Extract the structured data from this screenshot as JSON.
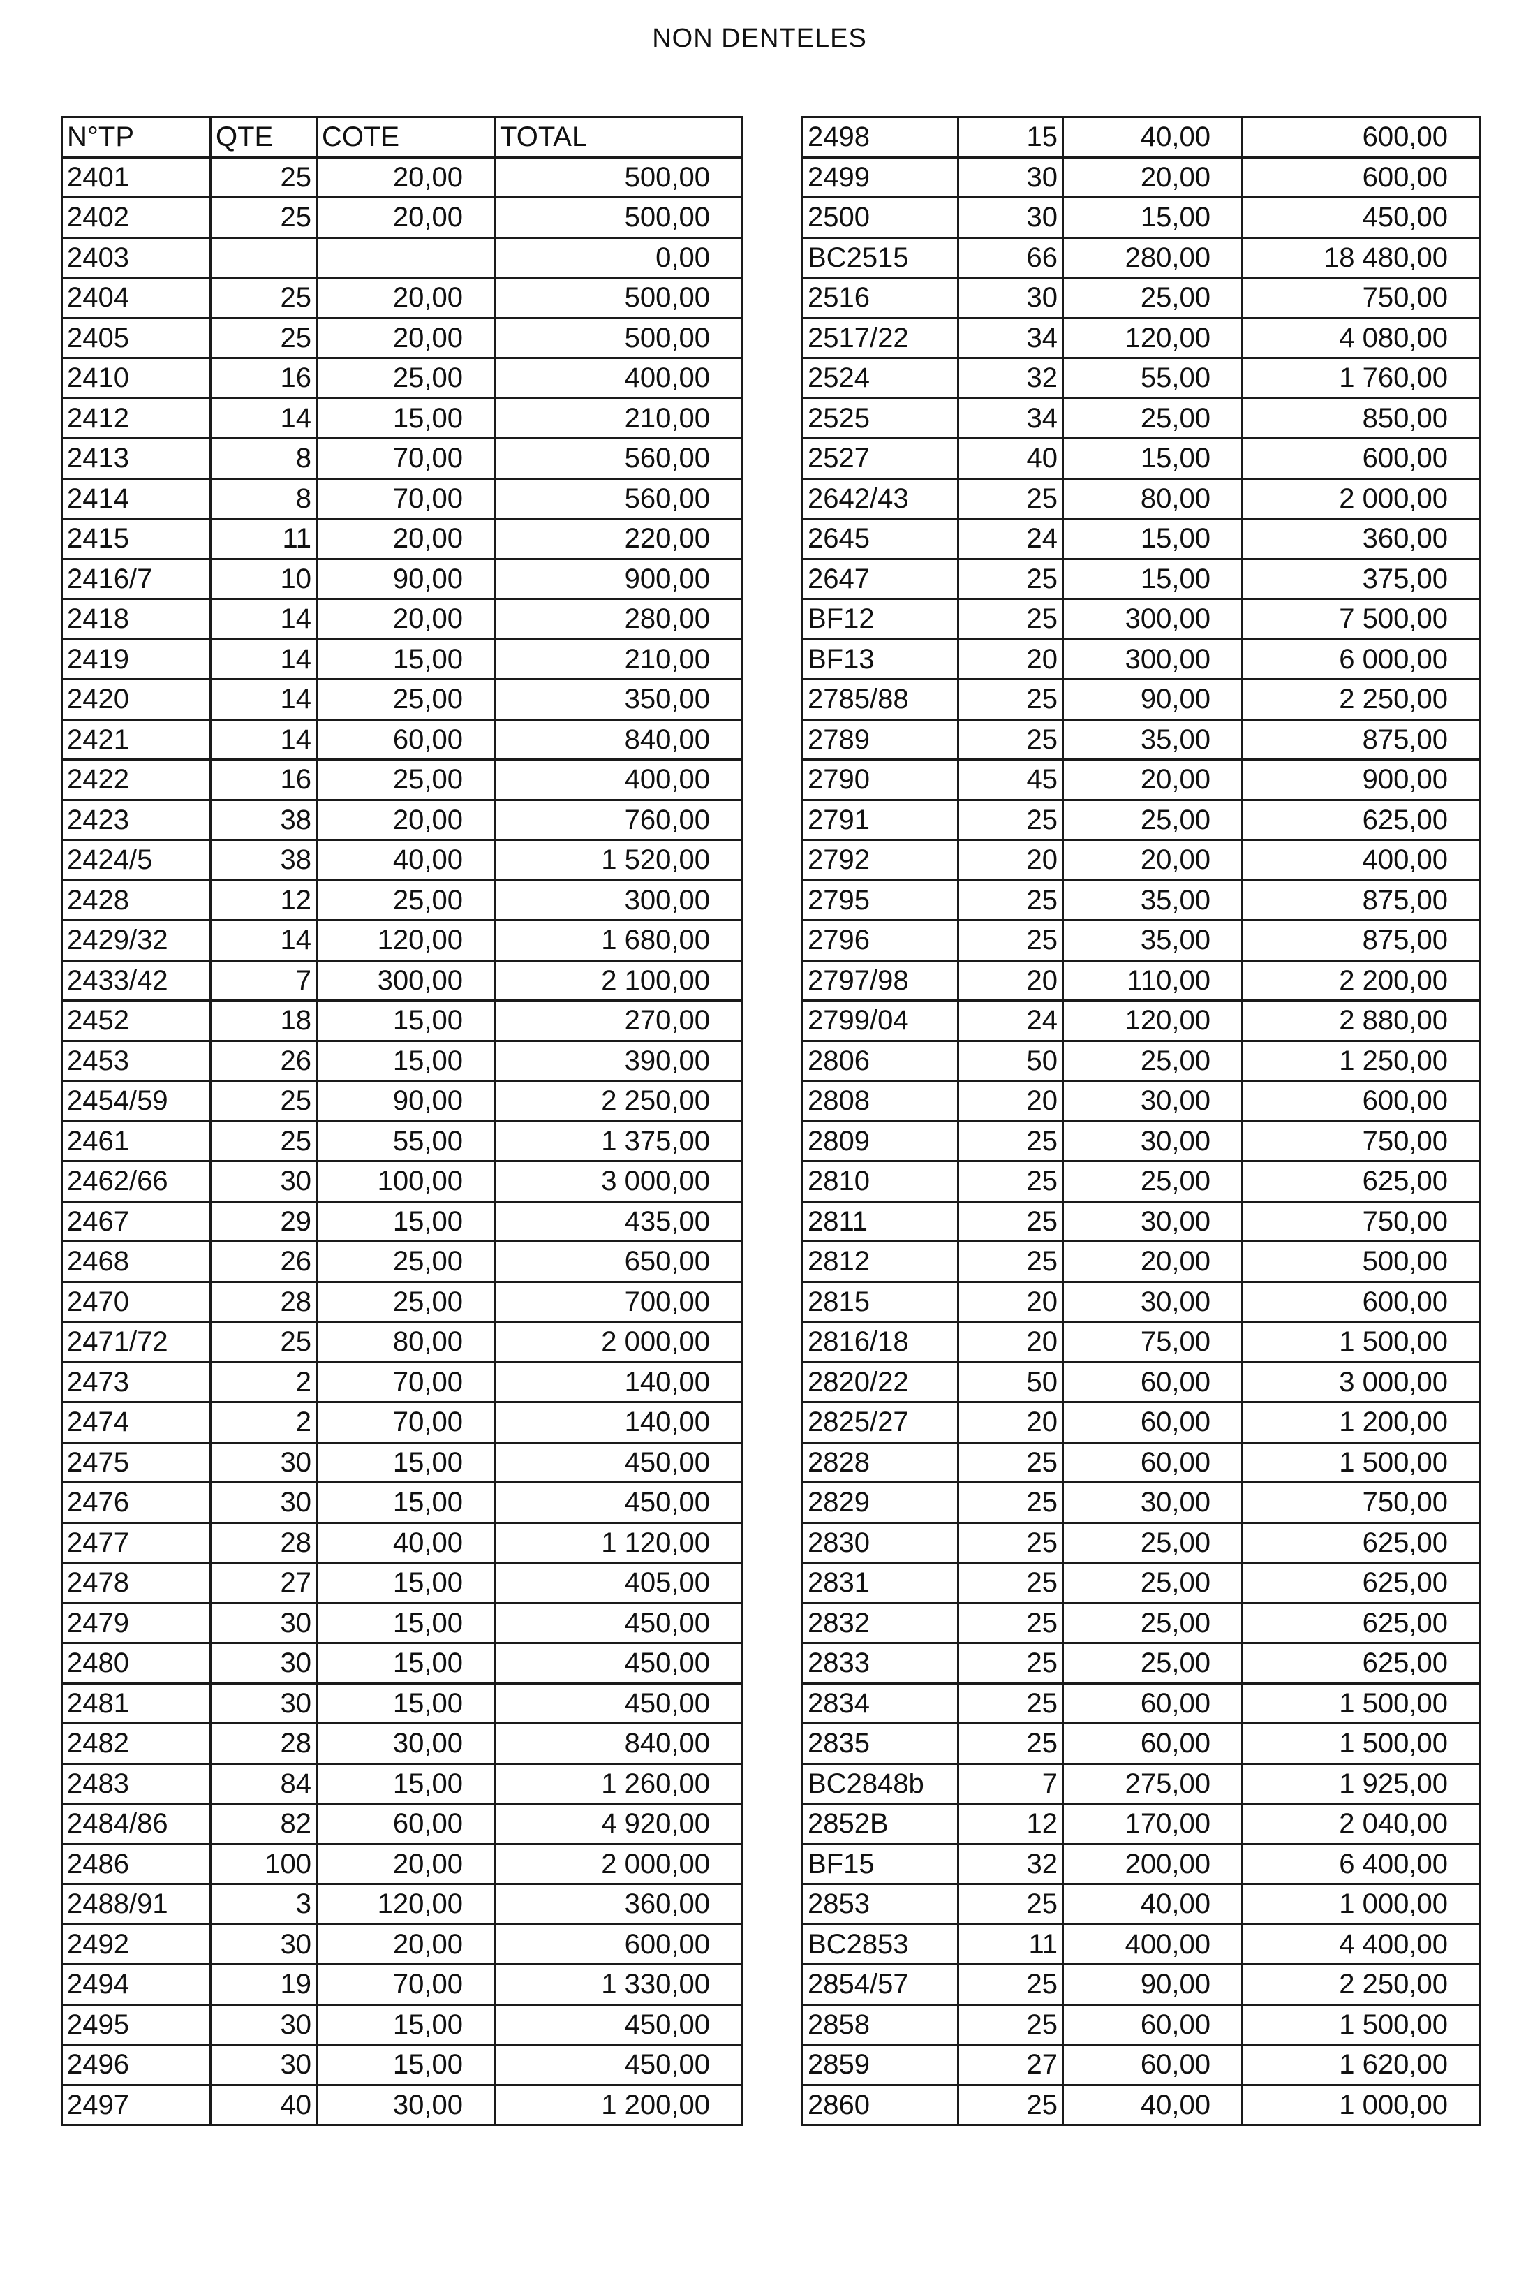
{
  "title": "NON DENTELES",
  "left_table": {
    "headers": [
      "N°TP",
      "QTE",
      "COTE",
      "TOTAL"
    ],
    "rows": [
      [
        "2401",
        "25",
        "20,00",
        "500,00"
      ],
      [
        "2402",
        "25",
        "20,00",
        "500,00"
      ],
      [
        "2403",
        "",
        "",
        "0,00"
      ],
      [
        "2404",
        "25",
        "20,00",
        "500,00"
      ],
      [
        "2405",
        "25",
        "20,00",
        "500,00"
      ],
      [
        "2410",
        "16",
        "25,00",
        "400,00"
      ],
      [
        "2412",
        "14",
        "15,00",
        "210,00"
      ],
      [
        "2413",
        "8",
        "70,00",
        "560,00"
      ],
      [
        "2414",
        "8",
        "70,00",
        "560,00"
      ],
      [
        "2415",
        "11",
        "20,00",
        "220,00"
      ],
      [
        "2416/7",
        "10",
        "90,00",
        "900,00"
      ],
      [
        "2418",
        "14",
        "20,00",
        "280,00"
      ],
      [
        "2419",
        "14",
        "15,00",
        "210,00"
      ],
      [
        "2420",
        "14",
        "25,00",
        "350,00"
      ],
      [
        "2421",
        "14",
        "60,00",
        "840,00"
      ],
      [
        "2422",
        "16",
        "25,00",
        "400,00"
      ],
      [
        "2423",
        "38",
        "20,00",
        "760,00"
      ],
      [
        "2424/5",
        "38",
        "40,00",
        "1 520,00"
      ],
      [
        "2428",
        "12",
        "25,00",
        "300,00"
      ],
      [
        "2429/32",
        "14",
        "120,00",
        "1 680,00"
      ],
      [
        "2433/42",
        "7",
        "300,00",
        "2 100,00"
      ],
      [
        "2452",
        "18",
        "15,00",
        "270,00"
      ],
      [
        "2453",
        "26",
        "15,00",
        "390,00"
      ],
      [
        "2454/59",
        "25",
        "90,00",
        "2 250,00"
      ],
      [
        "2461",
        "25",
        "55,00",
        "1 375,00"
      ],
      [
        "2462/66",
        "30",
        "100,00",
        "3 000,00"
      ],
      [
        "2467",
        "29",
        "15,00",
        "435,00"
      ],
      [
        "2468",
        "26",
        "25,00",
        "650,00"
      ],
      [
        "2470",
        "28",
        "25,00",
        "700,00"
      ],
      [
        "2471/72",
        "25",
        "80,00",
        "2 000,00"
      ],
      [
        "2473",
        "2",
        "70,00",
        "140,00"
      ],
      [
        "2474",
        "2",
        "70,00",
        "140,00"
      ],
      [
        "2475",
        "30",
        "15,00",
        "450,00"
      ],
      [
        "2476",
        "30",
        "15,00",
        "450,00"
      ],
      [
        "2477",
        "28",
        "40,00",
        "1 120,00"
      ],
      [
        "2478",
        "27",
        "15,00",
        "405,00"
      ],
      [
        "2479",
        "30",
        "15,00",
        "450,00"
      ],
      [
        "2480",
        "30",
        "15,00",
        "450,00"
      ],
      [
        "2481",
        "30",
        "15,00",
        "450,00"
      ],
      [
        "2482",
        "28",
        "30,00",
        "840,00"
      ],
      [
        "2483",
        "84",
        "15,00",
        "1 260,00"
      ],
      [
        "2484/86",
        "82",
        "60,00",
        "4 920,00"
      ],
      [
        "2486",
        "100",
        "20,00",
        "2 000,00"
      ],
      [
        "2488/91",
        "3",
        "120,00",
        "360,00"
      ],
      [
        "2492",
        "30",
        "20,00",
        "600,00"
      ],
      [
        "2494",
        "19",
        "70,00",
        "1 330,00"
      ],
      [
        "2495",
        "30",
        "15,00",
        "450,00"
      ],
      [
        "2496",
        "30",
        "15,00",
        "450,00"
      ],
      [
        "2497",
        "40",
        "30,00",
        "1 200,00"
      ]
    ]
  },
  "right_table": {
    "rows": [
      [
        "2498",
        "15",
        "40,00",
        "600,00"
      ],
      [
        "2499",
        "30",
        "20,00",
        "600,00"
      ],
      [
        "2500",
        "30",
        "15,00",
        "450,00"
      ],
      [
        "BC2515",
        "66",
        "280,00",
        "18 480,00"
      ],
      [
        "2516",
        "30",
        "25,00",
        "750,00"
      ],
      [
        "2517/22",
        "34",
        "120,00",
        "4 080,00"
      ],
      [
        "2524",
        "32",
        "55,00",
        "1 760,00"
      ],
      [
        "2525",
        "34",
        "25,00",
        "850,00"
      ],
      [
        "2527",
        "40",
        "15,00",
        "600,00"
      ],
      [
        "2642/43",
        "25",
        "80,00",
        "2 000,00"
      ],
      [
        "2645",
        "24",
        "15,00",
        "360,00"
      ],
      [
        "2647",
        "25",
        "15,00",
        "375,00"
      ],
      [
        "BF12",
        "25",
        "300,00",
        "7 500,00"
      ],
      [
        "BF13",
        "20",
        "300,00",
        "6 000,00"
      ],
      [
        "2785/88",
        "25",
        "90,00",
        "2 250,00"
      ],
      [
        "2789",
        "25",
        "35,00",
        "875,00"
      ],
      [
        "2790",
        "45",
        "20,00",
        "900,00"
      ],
      [
        "2791",
        "25",
        "25,00",
        "625,00"
      ],
      [
        "2792",
        "20",
        "20,00",
        "400,00"
      ],
      [
        "2795",
        "25",
        "35,00",
        "875,00"
      ],
      [
        "2796",
        "25",
        "35,00",
        "875,00"
      ],
      [
        "2797/98",
        "20",
        "110,00",
        "2 200,00"
      ],
      [
        "2799/04",
        "24",
        "120,00",
        "2 880,00"
      ],
      [
        "2806",
        "50",
        "25,00",
        "1 250,00"
      ],
      [
        "2808",
        "20",
        "30,00",
        "600,00"
      ],
      [
        "2809",
        "25",
        "30,00",
        "750,00"
      ],
      [
        "2810",
        "25",
        "25,00",
        "625,00"
      ],
      [
        "2811",
        "25",
        "30,00",
        "750,00"
      ],
      [
        "2812",
        "25",
        "20,00",
        "500,00"
      ],
      [
        "2815",
        "20",
        "30,00",
        "600,00"
      ],
      [
        "2816/18",
        "20",
        "75,00",
        "1 500,00"
      ],
      [
        "2820/22",
        "50",
        "60,00",
        "3 000,00"
      ],
      [
        "2825/27",
        "20",
        "60,00",
        "1 200,00"
      ],
      [
        "2828",
        "25",
        "60,00",
        "1 500,00"
      ],
      [
        "2829",
        "25",
        "30,00",
        "750,00"
      ],
      [
        "2830",
        "25",
        "25,00",
        "625,00"
      ],
      [
        "2831",
        "25",
        "25,00",
        "625,00"
      ],
      [
        "2832",
        "25",
        "25,00",
        "625,00"
      ],
      [
        "2833",
        "25",
        "25,00",
        "625,00"
      ],
      [
        "2834",
        "25",
        "60,00",
        "1 500,00"
      ],
      [
        "2835",
        "25",
        "60,00",
        "1 500,00"
      ],
      [
        "BC2848b",
        "7",
        "275,00",
        "1 925,00"
      ],
      [
        "2852B",
        "12",
        "170,00",
        "2 040,00"
      ],
      [
        "BF15",
        "32",
        "200,00",
        "6 400,00"
      ],
      [
        "2853",
        "25",
        "40,00",
        "1 000,00"
      ],
      [
        "BC2853",
        "11",
        "400,00",
        "4 400,00"
      ],
      [
        "2854/57",
        "25",
        "90,00",
        "2 250,00"
      ],
      [
        "2858",
        "25",
        "60,00",
        "1 500,00"
      ],
      [
        "2859",
        "27",
        "60,00",
        "1 620,00"
      ],
      [
        "2860",
        "25",
        "40,00",
        "1 000,00"
      ]
    ]
  }
}
